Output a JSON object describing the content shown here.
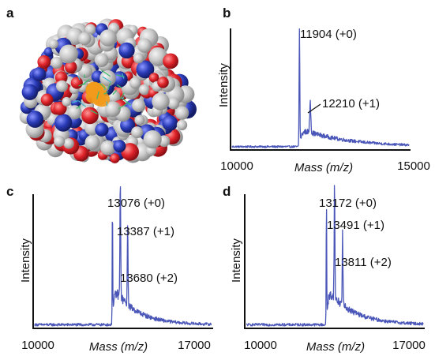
{
  "panels": {
    "a": {
      "letter": "a"
    },
    "b": {
      "letter": "b"
    },
    "c": {
      "letter": "c"
    },
    "d": {
      "letter": "d"
    }
  },
  "colors": {
    "spectrum": "#4a57b8",
    "atom_grey": "#c8c8c8",
    "atom_red": "#e0242a",
    "atom_blue": "#2a3bb8",
    "ligand_orange": "#f29a1c",
    "ligand_green": "#3dbb6a",
    "ligand_cyan": "#3fb6c8"
  },
  "chart_data": [
    {
      "panel": "b",
      "type": "line",
      "xlabel": "Mass (m/z)",
      "ylabel": "Intensity",
      "xlim": [
        10000,
        15000
      ],
      "xticks": [
        "10000",
        "15000"
      ],
      "peaks": [
        {
          "x": 11904,
          "y": 1.0,
          "label": "11904 (+0)"
        },
        {
          "x": 12210,
          "y": 0.28,
          "label": "12210 (+1)"
        }
      ],
      "tail_decay": 1300,
      "noise": 0.008
    },
    {
      "panel": "c",
      "type": "line",
      "xlabel": "Mass (m/z)",
      "ylabel": "Intensity",
      "xlim": [
        10000,
        17000
      ],
      "xticks": [
        "10000",
        "17000"
      ],
      "peaks": [
        {
          "x": 13076,
          "y": 1.0,
          "label": "13076 (+0)"
        },
        {
          "x": 13387,
          "y": 0.82,
          "label": "13387 (+1)"
        },
        {
          "x": 13680,
          "y": 0.55,
          "label": "13680 (+2)"
        }
      ],
      "tail_decay": 900,
      "noise": 0.01
    },
    {
      "panel": "d",
      "type": "line",
      "xlabel": "Mass (m/z)",
      "ylabel": "Intensity",
      "xlim": [
        10000,
        17000
      ],
      "xticks": [
        "10000",
        "17000"
      ],
      "peaks": [
        {
          "x": 13172,
          "y": 1.0,
          "label": "13172 (+0)"
        },
        {
          "x": 13491,
          "y": 0.8,
          "label": "13491 (+1)"
        },
        {
          "x": 13811,
          "y": 0.52,
          "label": "13811 (+2)"
        }
      ],
      "tail_decay": 1000,
      "noise": 0.01
    }
  ]
}
